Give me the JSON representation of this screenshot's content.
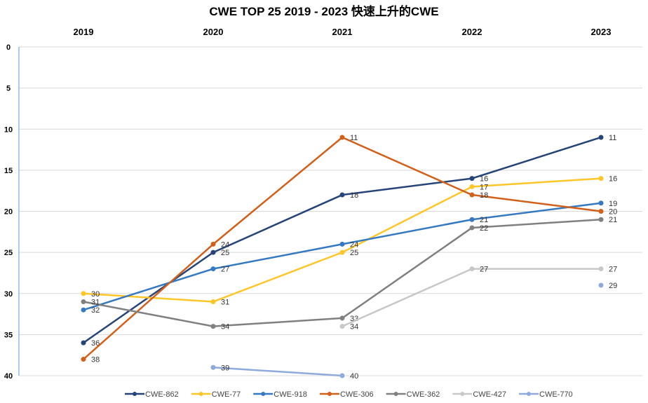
{
  "chart_data": {
    "type": "line",
    "title": "CWE TOP 25 2019 - 2023 快速上升的CWE",
    "categories": [
      "2019",
      "2020",
      "2021",
      "2022",
      "2023"
    ],
    "y_ticks": [
      0,
      5,
      10,
      15,
      20,
      25,
      30,
      35,
      40
    ],
    "ylim": [
      0,
      40
    ],
    "y_reversed": true,
    "x_axis_position": "top",
    "grid": true,
    "legend_position": "bottom",
    "series": [
      {
        "name": "CWE-862",
        "color": "#264478",
        "values": [
          36,
          25,
          18,
          16,
          11
        ]
      },
      {
        "name": "CWE-77",
        "color": "#FFC629",
        "values": [
          30,
          31,
          25,
          17,
          16
        ]
      },
      {
        "name": "CWE-918",
        "color": "#3579C2",
        "values": [
          32,
          27,
          24,
          21,
          19
        ]
      },
      {
        "name": "CWE-306",
        "color": "#D2601A",
        "values": [
          38,
          24,
          11,
          18,
          20
        ]
      },
      {
        "name": "CWE-362",
        "color": "#808080",
        "values": [
          31,
          34,
          33,
          22,
          21
        ]
      },
      {
        "name": "CWE-427",
        "color": "#C8C8C8",
        "values": [
          null,
          null,
          34,
          27,
          27
        ]
      },
      {
        "name": "CWE-770",
        "color": "#8FAADC",
        "values": [
          null,
          39,
          40,
          null,
          29
        ]
      }
    ]
  }
}
